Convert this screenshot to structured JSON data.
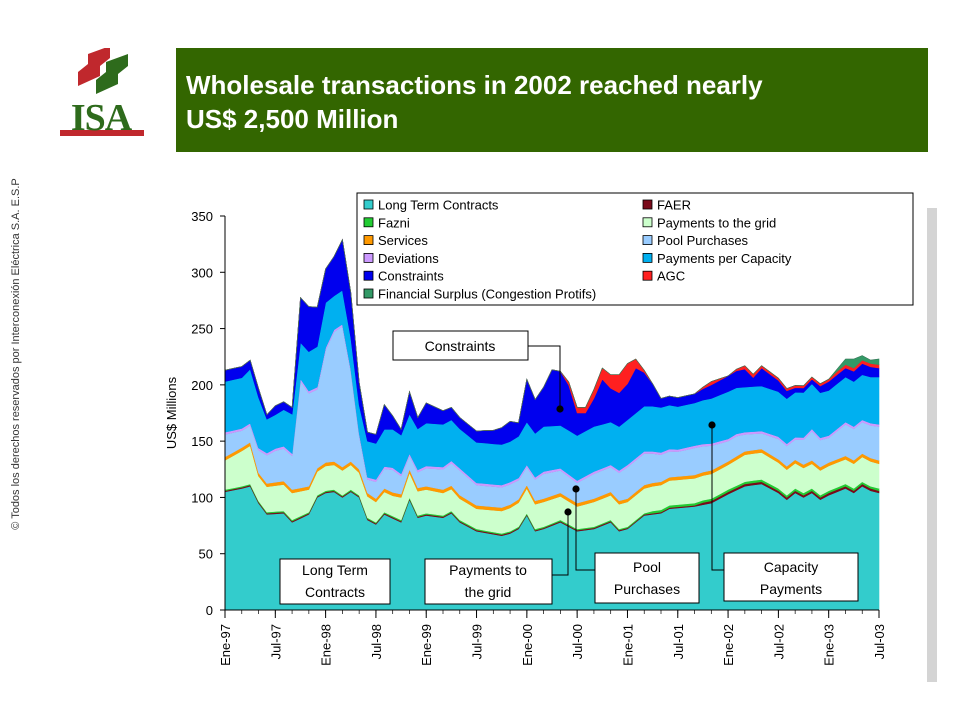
{
  "header": {
    "logo_text": "ISA",
    "title_line1": "Wholesale transactions in 2002 reached  nearly",
    "title_line2": "US$ 2,500 Million"
  },
  "copyright": "© Todos los derechos reservados por Interconexión Eléctrica S.A. E.S.P",
  "colors": {
    "title_bg": "#336600",
    "logo_green": "#2e6b1c",
    "logo_red": "#c0282d"
  },
  "chart_data": {
    "type": "area",
    "ylabel": "US$ Millions",
    "ylim": [
      0,
      350
    ],
    "yticks": [
      "0",
      "50",
      "100",
      "150",
      "200",
      "250",
      "300",
      "350"
    ],
    "x_tick_labels": [
      "Ene-97",
      "Jul-97",
      "Ene-98",
      "Jul-98",
      "Ene-99",
      "Jul-99",
      "Ene-00",
      "Jul-00",
      "Ene-01",
      "Jul-01",
      "Ene-02",
      "Jul-02",
      "Ene-03",
      "Jul-03"
    ],
    "x_tick_index": [
      0,
      6,
      12,
      18,
      24,
      30,
      36,
      42,
      48,
      54,
      60,
      66,
      72,
      78
    ],
    "n_months": 79,
    "legend": [
      {
        "name": "Long Term Contracts",
        "color": "#33cccc"
      },
      {
        "name": "FAER",
        "color": "#7a0a1a"
      },
      {
        "name": "Fazni",
        "color": "#22cc33"
      },
      {
        "name": "Payments to the grid",
        "color": "#ccffcc"
      },
      {
        "name": "Services",
        "color": "#ff9900"
      },
      {
        "name": "Pool Purchases",
        "color": "#99ccff"
      },
      {
        "name": "Deviations",
        "color": "#cc99ff"
      },
      {
        "name": "Payments per Capacity",
        "color": "#00b0f0"
      },
      {
        "name": "Constraints",
        "color": "#0000ee"
      },
      {
        "name": "AGC",
        "color": "#ff2020"
      },
      {
        "name": "Financial Surplus (Congestion Protifs)",
        "color": "#339966"
      }
    ],
    "series": [
      {
        "name": "Long Term Contracts",
        "color": "#33cccc",
        "keys": [
          [
            0,
            105
          ],
          [
            2,
            108
          ],
          [
            3,
            110
          ],
          [
            4,
            95
          ],
          [
            5,
            85
          ],
          [
            7,
            86
          ],
          [
            8,
            78
          ],
          [
            10,
            85
          ],
          [
            11,
            100
          ],
          [
            12,
            104
          ],
          [
            13,
            105
          ],
          [
            14,
            100
          ],
          [
            15,
            105
          ],
          [
            16,
            100
          ],
          [
            17,
            80
          ],
          [
            18,
            76
          ],
          [
            19,
            85
          ],
          [
            21,
            78
          ],
          [
            22,
            98
          ],
          [
            23,
            82
          ],
          [
            24,
            84
          ],
          [
            26,
            82
          ],
          [
            27,
            86
          ],
          [
            28,
            78
          ],
          [
            30,
            70
          ],
          [
            33,
            66
          ],
          [
            34,
            68
          ],
          [
            35,
            72
          ],
          [
            36,
            84
          ],
          [
            37,
            70
          ],
          [
            38,
            72
          ],
          [
            40,
            78
          ],
          [
            42,
            70
          ],
          [
            44,
            72
          ],
          [
            46,
            78
          ],
          [
            47,
            70
          ],
          [
            48,
            72
          ],
          [
            50,
            84
          ],
          [
            52,
            86
          ],
          [
            53,
            90
          ],
          [
            56,
            92
          ],
          [
            58,
            95
          ],
          [
            60,
            103
          ],
          [
            62,
            110
          ],
          [
            64,
            112
          ],
          [
            66,
            104
          ],
          [
            67,
            98
          ],
          [
            68,
            104
          ],
          [
            69,
            100
          ],
          [
            70,
            104
          ],
          [
            71,
            98
          ],
          [
            72,
            102
          ],
          [
            74,
            108
          ],
          [
            75,
            104
          ],
          [
            76,
            110
          ],
          [
            77,
            106
          ],
          [
            78,
            104
          ]
        ]
      },
      {
        "name": "FAER",
        "color": "#7a0a1a",
        "keys": [
          [
            0,
            1
          ],
          [
            56,
            1
          ],
          [
            57,
            2
          ],
          [
            78,
            2
          ]
        ]
      },
      {
        "name": "Fazni",
        "color": "#22cc33",
        "keys": [
          [
            0,
            1
          ],
          [
            50,
            1
          ],
          [
            51,
            2
          ],
          [
            78,
            2
          ]
        ]
      },
      {
        "name": "Payments to the grid",
        "color": "#ccffcc",
        "keys": [
          [
            0,
            26
          ],
          [
            3,
            34
          ],
          [
            4,
            22
          ],
          [
            8,
            24
          ],
          [
            10,
            20
          ],
          [
            12,
            22
          ],
          [
            15,
            22
          ],
          [
            16,
            20
          ],
          [
            18,
            18
          ],
          [
            20,
            18
          ],
          [
            22,
            22
          ],
          [
            26,
            20
          ],
          [
            30,
            18
          ],
          [
            36,
            22
          ],
          [
            38,
            22
          ],
          [
            42,
            20
          ],
          [
            44,
            22
          ],
          [
            48,
            22
          ],
          [
            50,
            22
          ],
          [
            54,
            22
          ],
          [
            58,
            22
          ],
          [
            60,
            22
          ],
          [
            62,
            24
          ],
          [
            64,
            24
          ],
          [
            66,
            23
          ],
          [
            70,
            22
          ],
          [
            74,
            22
          ],
          [
            78,
            22
          ]
        ]
      },
      {
        "name": "Services",
        "color": "#ff9900",
        "keys": [
          [
            0,
            3
          ],
          [
            78,
            3
          ]
        ]
      },
      {
        "name": "Pool Purchases",
        "color": "#99ccff",
        "keys": [
          [
            0,
            20
          ],
          [
            2,
            15
          ],
          [
            3,
            15
          ],
          [
            4,
            20
          ],
          [
            5,
            25
          ],
          [
            6,
            28
          ],
          [
            8,
            30
          ],
          [
            9,
            95
          ],
          [
            11,
            70
          ],
          [
            12,
            100
          ],
          [
            13,
            115
          ],
          [
            14,
            125
          ],
          [
            15,
            80
          ],
          [
            16,
            30
          ],
          [
            17,
            12
          ],
          [
            18,
            15
          ],
          [
            20,
            20
          ],
          [
            22,
            12
          ],
          [
            24,
            16
          ],
          [
            26,
            18
          ],
          [
            28,
            22
          ],
          [
            30,
            18
          ],
          [
            32,
            18
          ],
          [
            34,
            18
          ],
          [
            36,
            16
          ],
          [
            38,
            22
          ],
          [
            40,
            20
          ],
          [
            42,
            18
          ],
          [
            44,
            22
          ],
          [
            46,
            22
          ],
          [
            48,
            28
          ],
          [
            50,
            28
          ],
          [
            52,
            24
          ],
          [
            54,
            22
          ],
          [
            56,
            24
          ],
          [
            58,
            22
          ],
          [
            60,
            18
          ],
          [
            61,
            18
          ],
          [
            62,
            15
          ],
          [
            64,
            14
          ],
          [
            66,
            18
          ],
          [
            68,
            18
          ],
          [
            70,
            26
          ],
          [
            72,
            22
          ],
          [
            74,
            28
          ],
          [
            76,
            28
          ],
          [
            78,
            30
          ]
        ]
      },
      {
        "name": "Deviations",
        "color": "#cc99ff",
        "keys": [
          [
            0,
            2
          ],
          [
            78,
            2
          ]
        ]
      },
      {
        "name": "Payments per Capacity",
        "color": "#00b0f0",
        "keys": [
          [
            0,
            45
          ],
          [
            2,
            45
          ],
          [
            3,
            48
          ],
          [
            4,
            45
          ],
          [
            5,
            30
          ],
          [
            6,
            30
          ],
          [
            8,
            35
          ],
          [
            9,
            32
          ],
          [
            10,
            35
          ],
          [
            11,
            36
          ],
          [
            12,
            40
          ],
          [
            13,
            30
          ],
          [
            14,
            30
          ],
          [
            15,
            28
          ],
          [
            16,
            25
          ],
          [
            17,
            32
          ],
          [
            18,
            32
          ],
          [
            20,
            34
          ],
          [
            22,
            35
          ],
          [
            24,
            38
          ],
          [
            26,
            38
          ],
          [
            28,
            35
          ],
          [
            30,
            36
          ],
          [
            32,
            36
          ],
          [
            34,
            36
          ],
          [
            36,
            38
          ],
          [
            38,
            40
          ],
          [
            40,
            38
          ],
          [
            42,
            40
          ],
          [
            44,
            40
          ],
          [
            46,
            38
          ],
          [
            48,
            40
          ],
          [
            50,
            40
          ],
          [
            52,
            40
          ],
          [
            54,
            38
          ],
          [
            56,
            38
          ],
          [
            58,
            40
          ],
          [
            60,
            42
          ],
          [
            62,
            40
          ],
          [
            64,
            40
          ],
          [
            66,
            40
          ],
          [
            68,
            40
          ],
          [
            70,
            40
          ],
          [
            72,
            40
          ],
          [
            74,
            40
          ],
          [
            76,
            40
          ],
          [
            78,
            42
          ]
        ]
      },
      {
        "name": "Constraints",
        "color": "#0000ee",
        "keys": [
          [
            0,
            10
          ],
          [
            2,
            10
          ],
          [
            3,
            8
          ],
          [
            4,
            8
          ],
          [
            5,
            4
          ],
          [
            6,
            8
          ],
          [
            8,
            6
          ],
          [
            9,
            40
          ],
          [
            10,
            40
          ],
          [
            11,
            35
          ],
          [
            12,
            30
          ],
          [
            13,
            35
          ],
          [
            14,
            45
          ],
          [
            15,
            40
          ],
          [
            16,
            20
          ],
          [
            17,
            8
          ],
          [
            18,
            8
          ],
          [
            19,
            22
          ],
          [
            20,
            12
          ],
          [
            21,
            5
          ],
          [
            22,
            20
          ],
          [
            23,
            10
          ],
          [
            24,
            18
          ],
          [
            26,
            12
          ],
          [
            28,
            10
          ],
          [
            30,
            10
          ],
          [
            32,
            12
          ],
          [
            34,
            18
          ],
          [
            35,
            12
          ],
          [
            36,
            38
          ],
          [
            37,
            30
          ],
          [
            38,
            35
          ],
          [
            39,
            50
          ],
          [
            40,
            48
          ],
          [
            41,
            40
          ],
          [
            42,
            20
          ],
          [
            43,
            16
          ],
          [
            44,
            25
          ],
          [
            45,
            40
          ],
          [
            46,
            30
          ],
          [
            47,
            30
          ],
          [
            48,
            32
          ],
          [
            49,
            40
          ],
          [
            50,
            30
          ],
          [
            51,
            20
          ],
          [
            52,
            8
          ],
          [
            54,
            8
          ],
          [
            55,
            8
          ],
          [
            56,
            8
          ],
          [
            58,
            12
          ],
          [
            60,
            14
          ],
          [
            62,
            16
          ],
          [
            63,
            8
          ],
          [
            64,
            16
          ],
          [
            66,
            10
          ],
          [
            68,
            4
          ],
          [
            70,
            4
          ],
          [
            72,
            8
          ],
          [
            74,
            8
          ],
          [
            76,
            10
          ],
          [
            78,
            8
          ]
        ]
      },
      {
        "name": "AGC",
        "color": "#ff2020",
        "keys": [
          [
            0,
            0
          ],
          [
            40,
            0
          ],
          [
            41,
            3
          ],
          [
            42,
            5
          ],
          [
            43,
            5
          ],
          [
            44,
            8
          ],
          [
            46,
            12
          ],
          [
            47,
            16
          ],
          [
            48,
            18
          ],
          [
            49,
            8
          ],
          [
            50,
            2
          ],
          [
            51,
            0
          ],
          [
            56,
            0
          ],
          [
            58,
            3
          ],
          [
            60,
            0
          ],
          [
            62,
            3
          ],
          [
            63,
            3
          ],
          [
            64,
            2
          ],
          [
            66,
            2
          ],
          [
            68,
            2
          ],
          [
            70,
            2
          ],
          [
            72,
            2
          ],
          [
            73,
            3
          ],
          [
            78,
            3
          ]
        ]
      },
      {
        "name": "Financial Surplus (Congestion Protifs)",
        "color": "#339966",
        "keys": [
          [
            0,
            0
          ],
          [
            72,
            0
          ],
          [
            73,
            2
          ],
          [
            74,
            5
          ],
          [
            75,
            8
          ],
          [
            76,
            4
          ],
          [
            77,
            3
          ],
          [
            78,
            5
          ]
        ]
      }
    ],
    "annotations": [
      {
        "id": "constraints",
        "label": "Constraints"
      },
      {
        "id": "long-term",
        "line1": "Long Term",
        "line2": "Contracts"
      },
      {
        "id": "payments-grid",
        "line1": "Payments to",
        "line2": "the grid"
      },
      {
        "id": "pool",
        "line1": "Pool",
        "line2": "Purchases"
      },
      {
        "id": "capacity",
        "line1": "Capacity",
        "line2": "Payments"
      }
    ]
  }
}
